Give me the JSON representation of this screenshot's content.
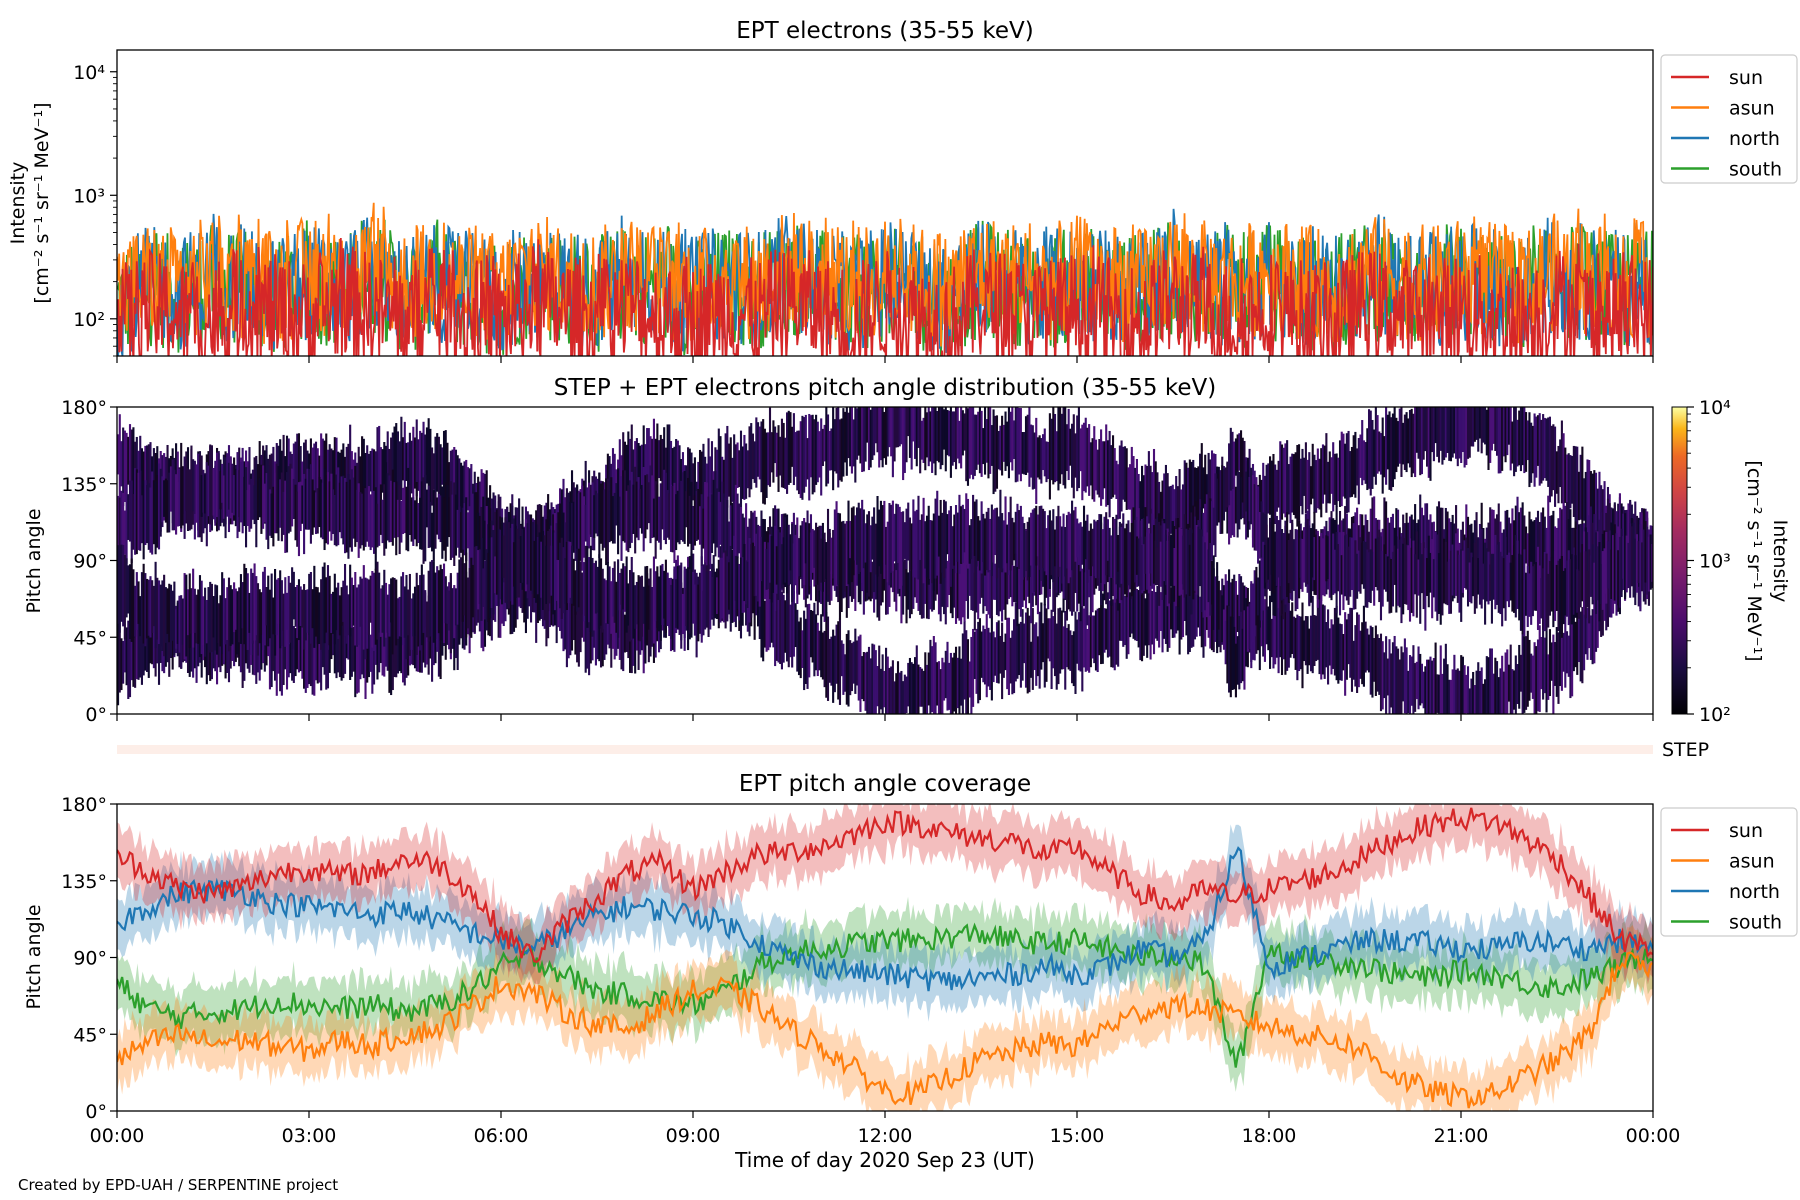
{
  "footer": "Created by EPD-UAH / SERPENTINE project",
  "colors": {
    "sun": "#d62728",
    "asun": "#ff7f0e",
    "north": "#1f77b4",
    "south": "#2ca02c",
    "step_strip": "#fdeee8"
  },
  "chart_data": [
    {
      "type": "line",
      "title": "EPT electrons (35-55 keV)",
      "ylabel_line1": "Intensity",
      "ylabel_line2": "[cm⁻² s⁻¹ sr⁻¹ MeV⁻¹]",
      "yscale": "log",
      "ylim": [
        50,
        15000
      ],
      "yticks": [
        {
          "value": 100,
          "label": "10²"
        },
        {
          "value": 1000,
          "label": "10³"
        },
        {
          "value": 10000,
          "label": "10⁴"
        }
      ],
      "x_hours": [
        0,
        0.5,
        1,
        1.5,
        2,
        2.5,
        3,
        3.5,
        4,
        4.5,
        5,
        5.5,
        6,
        6.5,
        7,
        7.5,
        8,
        8.5,
        9,
        9.5,
        10,
        10.5,
        11,
        11.5,
        12,
        12.5,
        13,
        13.5,
        14,
        14.5,
        15,
        15.5,
        16,
        16.5,
        17,
        17.5,
        18,
        18.5,
        19,
        19.5,
        20,
        20.5,
        21,
        21.5,
        22,
        22.5,
        23,
        23.5,
        24
      ],
      "legend_position": "outside upper-right",
      "series": [
        {
          "name": "sun",
          "color": "#d62728",
          "values": [
            90,
            120,
            105,
            95,
            130,
            110,
            100,
            140,
            115,
            98,
            125,
            108,
            92,
            135,
            112,
            99,
            128,
            104,
            95,
            118,
            102,
            140,
            110,
            96,
            124,
            107,
            90,
            132,
            115,
            101,
            120,
            106,
            94,
            138,
            111,
            97,
            126,
            103,
            93,
            130,
            109,
            98,
            122,
            105,
            96,
            134,
            113,
            100,
            115
          ]
        },
        {
          "name": "asun",
          "color": "#ff7f0e",
          "values": [
            160,
            210,
            185,
            240,
            200,
            175,
            230,
            195,
            260,
            180,
            215,
            190,
            170,
            250,
            205,
            185,
            235,
            200,
            175,
            220,
            195,
            265,
            210,
            180,
            225,
            200,
            170,
            245,
            215,
            190,
            230,
            205,
            180,
            255,
            210,
            190,
            235,
            200,
            175,
            240,
            210,
            190,
            220,
            205,
            180,
            245,
            215,
            195,
            210
          ]
        },
        {
          "name": "north",
          "color": "#1f77b4",
          "values": [
            140,
            190,
            165,
            210,
            180,
            155,
            205,
            170,
            230,
            160,
            195,
            170,
            150,
            220,
            185,
            165,
            210,
            180,
            155,
            200,
            175,
            235,
            190,
            160,
            200,
            180,
            150,
            220,
            195,
            170,
            205,
            185,
            160,
            225,
            190,
            170,
            210,
            180,
            155,
            215,
            190,
            170,
            200,
            185,
            160,
            220,
            195,
            175,
            190
          ]
        },
        {
          "name": "south",
          "color": "#2ca02c",
          "values": [
            130,
            180,
            155,
            200,
            170,
            145,
            195,
            160,
            220,
            150,
            185,
            160,
            140,
            210,
            175,
            155,
            200,
            170,
            145,
            190,
            165,
            225,
            180,
            150,
            190,
            170,
            140,
            210,
            185,
            160,
            195,
            175,
            150,
            215,
            180,
            160,
            200,
            170,
            145,
            205,
            180,
            160,
            190,
            175,
            150,
            210,
            185,
            165,
            180
          ]
        }
      ]
    },
    {
      "type": "heatmap",
      "title": "STEP + EPT electrons pitch angle distribution (35-55 keV)",
      "ylabel": "Pitch angle",
      "ylim": [
        0,
        180
      ],
      "yticks": [
        "0°",
        "45°",
        "90°",
        "135°",
        "180°"
      ],
      "colorbar": {
        "scale": "log",
        "range": [
          100,
          10000
        ],
        "colormap": "inferno",
        "ticks": [
          {
            "value": 100,
            "label": "10²"
          },
          {
            "value": 1000,
            "label": "10³"
          },
          {
            "value": 10000,
            "label": "10⁴"
          }
        ],
        "label_line1": "Intensity",
        "label_line2": "[cm⁻² s⁻¹ sr⁻¹ MeV⁻¹]"
      },
      "step_label": "STEP",
      "band_source": "pitch angle coverage (sun, asun, north, south) with ± spread"
    },
    {
      "type": "line",
      "title": "EPT pitch angle coverage",
      "ylabel": "Pitch angle",
      "xlabel": "Time of day 2020 Sep 23 (UT)",
      "ylim": [
        0,
        180
      ],
      "yticks": [
        "0°",
        "45°",
        "90°",
        "135°",
        "180°"
      ],
      "xticks": [
        "00:00",
        "03:00",
        "06:00",
        "09:00",
        "12:00",
        "15:00",
        "18:00",
        "21:00",
        "00:00"
      ],
      "xlim_hours": [
        0,
        24
      ],
      "band_halfwidth_deg": 15,
      "legend_position": "outside upper-right",
      "x_hours": [
        0,
        0.5,
        1,
        1.5,
        2,
        2.5,
        3,
        3.5,
        4,
        4.5,
        5,
        5.5,
        6,
        6.5,
        7,
        7.5,
        8,
        8.5,
        9,
        9.5,
        10,
        10.5,
        11,
        11.5,
        12,
        12.5,
        13,
        13.5,
        14,
        14.5,
        15,
        15.5,
        16,
        16.5,
        17,
        17.5,
        18,
        18.5,
        19,
        19.5,
        20,
        20.5,
        21,
        21.5,
        22,
        22.5,
        23,
        23.5,
        24
      ],
      "series": [
        {
          "name": "sun",
          "color": "#d62728",
          "values": [
            150,
            140,
            130,
            128,
            132,
            140,
            142,
            138,
            140,
            148,
            145,
            130,
            105,
            90,
            110,
            125,
            140,
            145,
            130,
            140,
            150,
            152,
            155,
            162,
            170,
            168,
            163,
            160,
            158,
            150,
            155,
            140,
            128,
            120,
            130,
            125,
            130,
            135,
            140,
            150,
            160,
            168,
            172,
            170,
            160,
            148,
            125,
            100,
            95
          ]
        },
        {
          "name": "asun",
          "color": "#ff7f0e",
          "values": [
            30,
            40,
            45,
            40,
            42,
            38,
            35,
            42,
            38,
            45,
            48,
            60,
            75,
            70,
            58,
            50,
            48,
            60,
            70,
            72,
            62,
            48,
            38,
            25,
            12,
            10,
            20,
            30,
            35,
            40,
            38,
            50,
            58,
            62,
            60,
            55,
            50,
            45,
            42,
            35,
            20,
            12,
            8,
            10,
            20,
            30,
            45,
            90,
            80
          ]
        },
        {
          "name": "north",
          "color": "#1f77b4",
          "values": [
            110,
            120,
            128,
            130,
            128,
            122,
            120,
            118,
            115,
            118,
            112,
            105,
            100,
            95,
            105,
            115,
            120,
            118,
            115,
            110,
            100,
            90,
            85,
            82,
            80,
            78,
            76,
            78,
            80,
            85,
            80,
            85,
            95,
            90,
            100,
            155,
            85,
            90,
            95,
            100,
            100,
            98,
            95,
            95,
            100,
            98,
            95,
            100,
            95
          ]
        },
        {
          "name": "south",
          "color": "#2ca02c",
          "values": [
            75,
            60,
            55,
            58,
            60,
            65,
            62,
            60,
            62,
            58,
            62,
            70,
            85,
            90,
            80,
            70,
            68,
            65,
            62,
            70,
            85,
            92,
            95,
            98,
            100,
            100,
            102,
            104,
            100,
            98,
            100,
            95,
            90,
            92,
            85,
            25,
            95,
            90,
            88,
            85,
            80,
            78,
            82,
            80,
            75,
            72,
            78,
            85,
            95
          ]
        }
      ]
    }
  ]
}
